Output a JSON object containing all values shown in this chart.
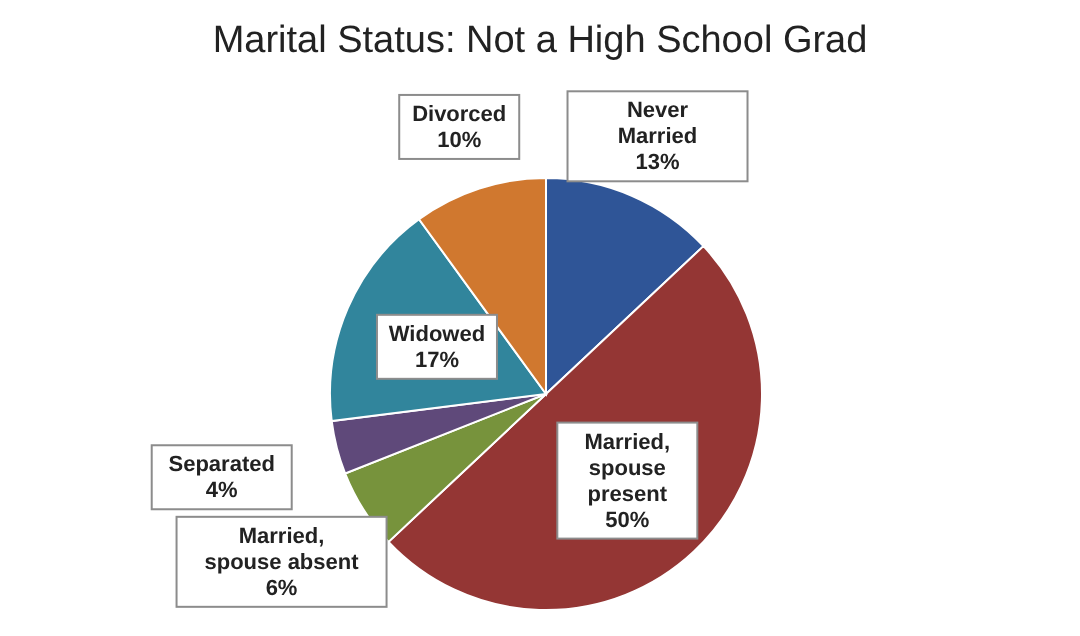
{
  "chart_data": {
    "type": "pie",
    "title": "Marital Status: Not a High School Grad",
    "categories": [
      "Never Married",
      "Married, spouse present",
      "Married, spouse absent",
      "Separated",
      "Widowed",
      "Divorced"
    ],
    "values": [
      13,
      50,
      6,
      4,
      17,
      10
    ],
    "value_labels": [
      "13%",
      "50%",
      "6%",
      "4%",
      "17%",
      "10%"
    ],
    "colors": [
      "#2f5597",
      "#943634",
      "#77933c",
      "#5f497a",
      "#31859c",
      "#d0782f"
    ],
    "legend": false
  }
}
